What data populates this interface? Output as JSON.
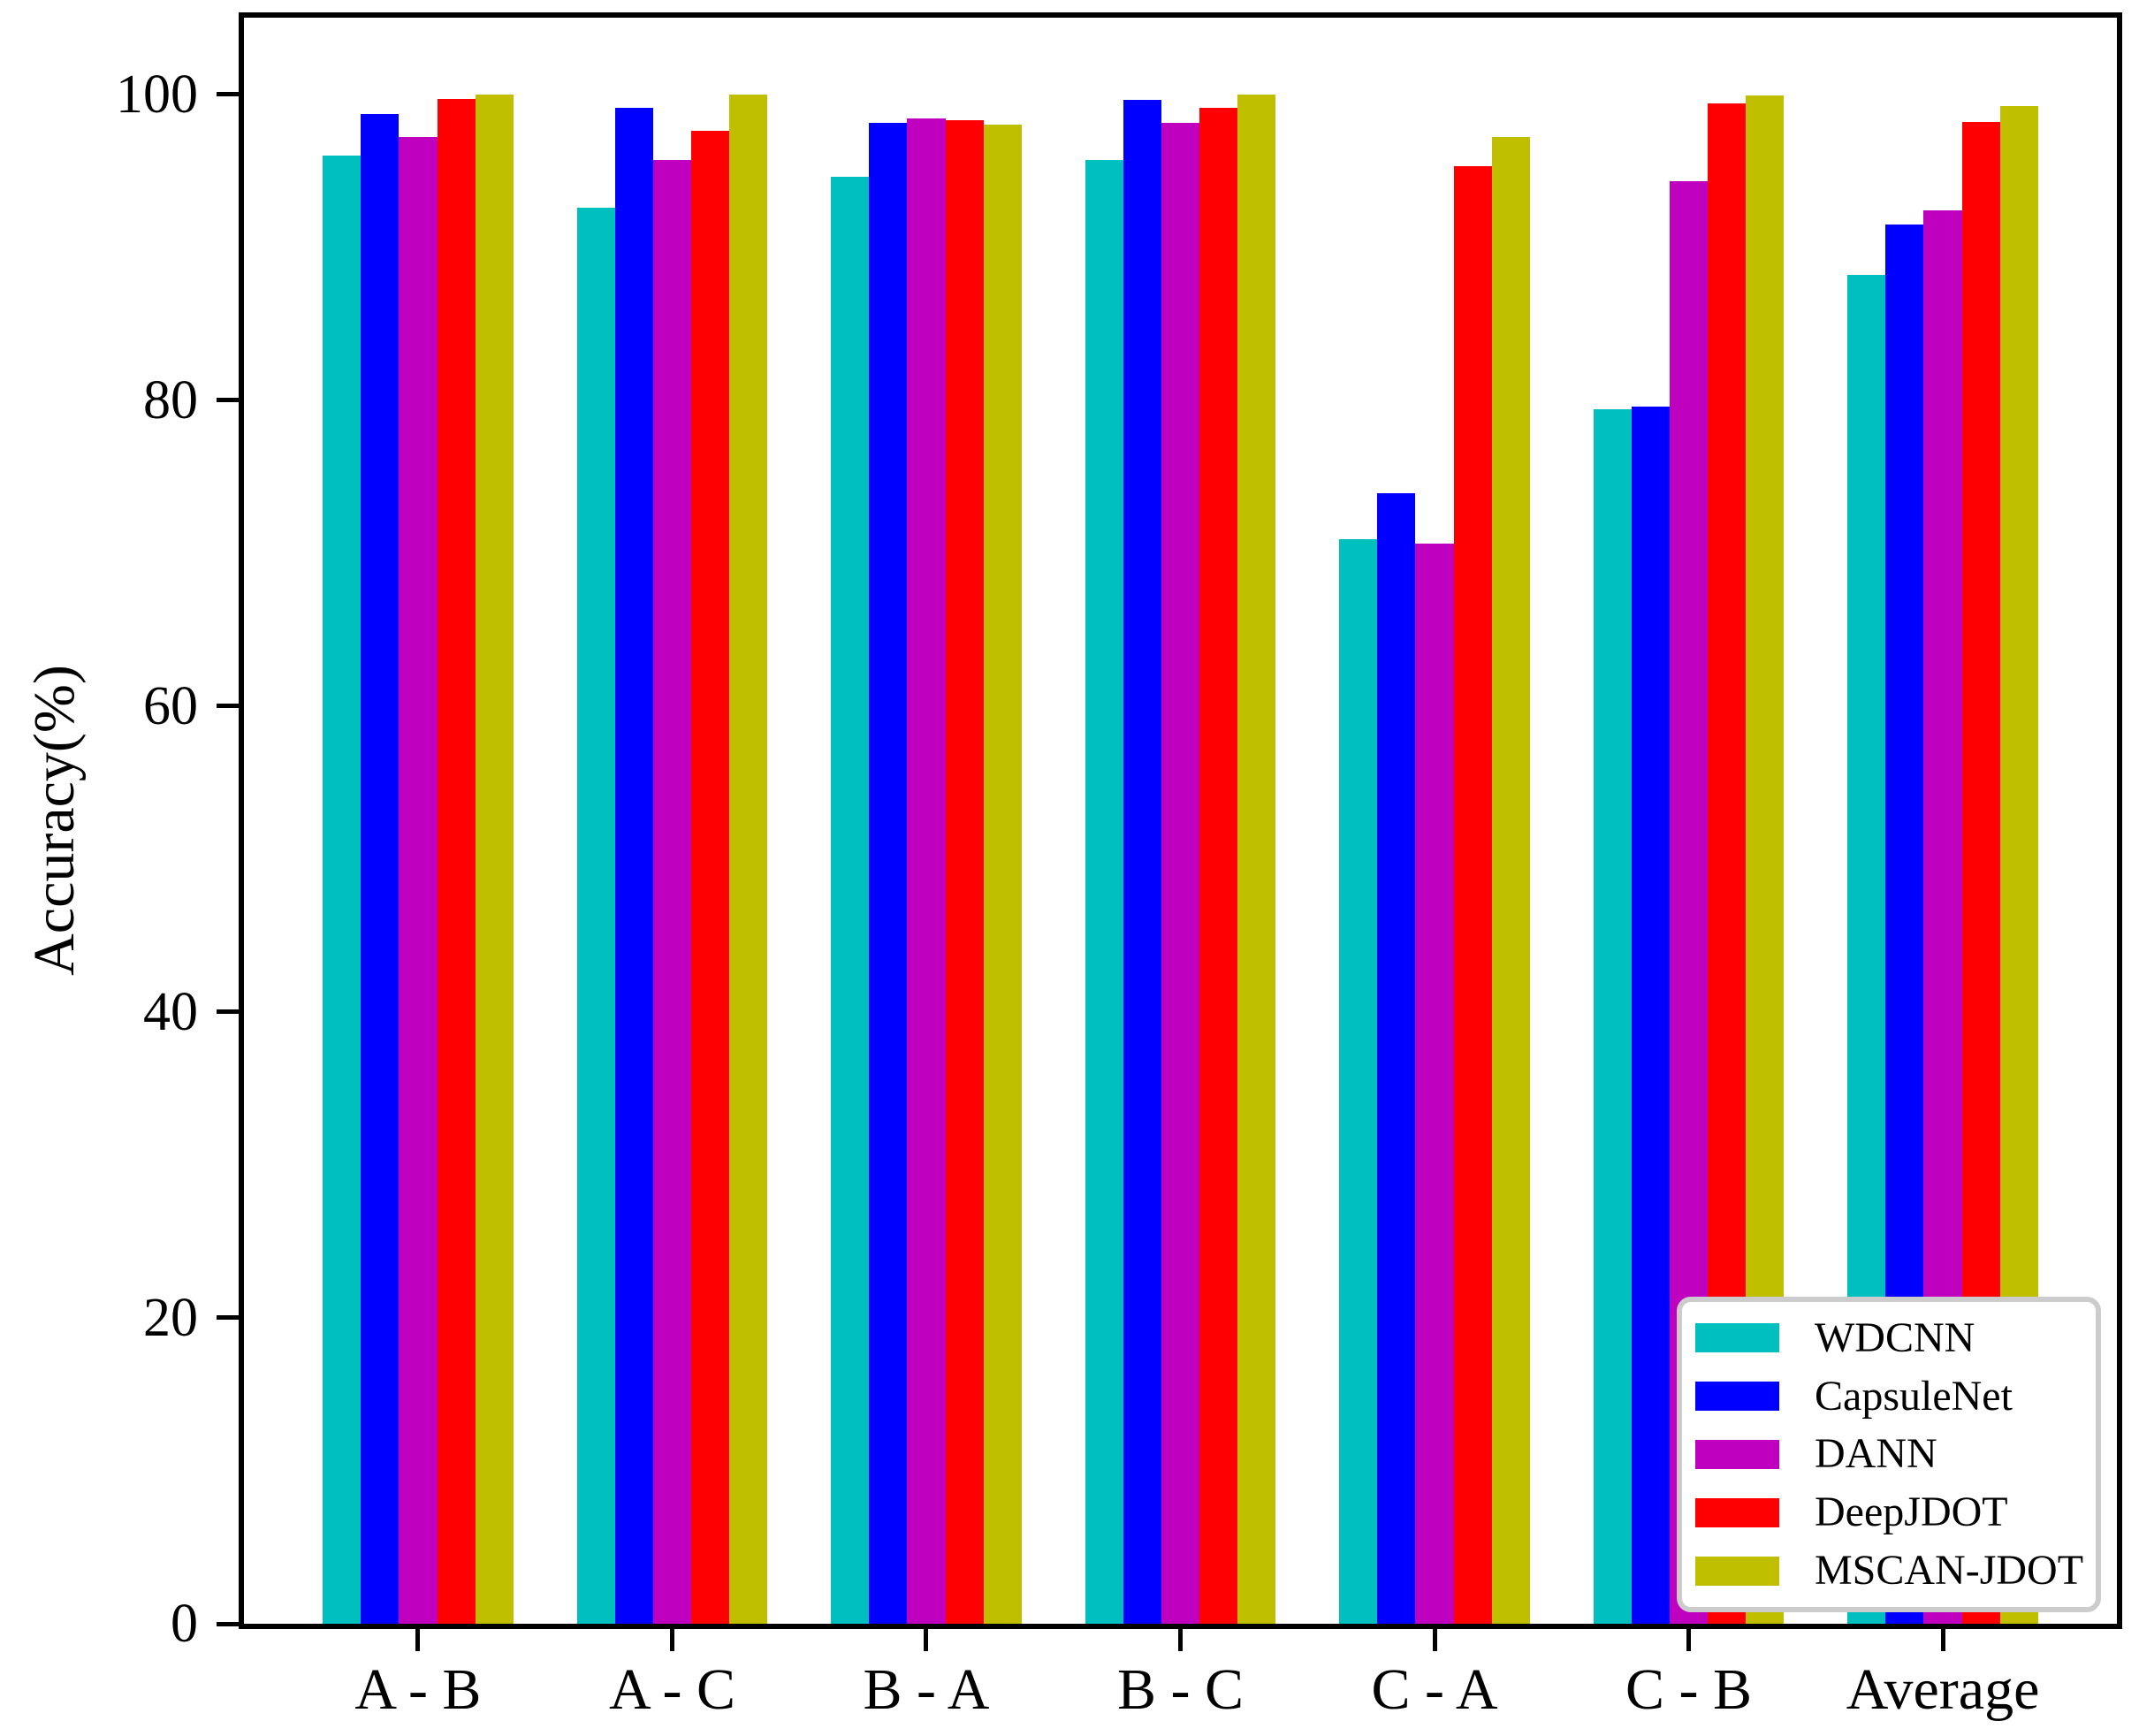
{
  "chart_data": {
    "type": "bar",
    "title": "",
    "xlabel": "",
    "ylabel": "Accuracy(%)",
    "categories": [
      "A - B",
      "A - C",
      "B - A",
      "B - C",
      "C - A",
      "C - B",
      "Average"
    ],
    "series": [
      {
        "name": "WDCNN",
        "color": "#00bfbf",
        "values": [
          96.0,
          92.6,
          94.6,
          95.7,
          70.9,
          79.4,
          88.2
        ]
      },
      {
        "name": "CapsuleNet",
        "color": "#0000ff",
        "values": [
          98.7,
          99.1,
          98.1,
          99.6,
          73.9,
          79.6,
          91.5
        ]
      },
      {
        "name": "DANN",
        "color": "#bf00bf",
        "values": [
          97.2,
          95.7,
          98.4,
          98.1,
          70.6,
          94.3,
          92.4
        ]
      },
      {
        "name": "DeepJDOT",
        "color": "#ff0000",
        "values": [
          99.7,
          97.6,
          98.3,
          99.1,
          95.3,
          99.4,
          98.2
        ]
      },
      {
        "name": "MSCAN-JDOT",
        "color": "#bfbf00",
        "values": [
          100.0,
          100.0,
          98.0,
          100.0,
          97.2,
          99.9,
          99.2
        ]
      }
    ],
    "yticks": [
      0,
      20,
      40,
      60,
      80,
      100
    ],
    "ylim": [
      0,
      105
    ],
    "grid": false,
    "legend": {
      "position": "lower-right",
      "background": "#ffffff",
      "border_color": "#cccccc",
      "entries": [
        "WDCNN",
        "CapsuleNet",
        "DANN",
        "DeepJDOT",
        "MSCAN-JDOT"
      ]
    },
    "axis_color": "#000000"
  }
}
